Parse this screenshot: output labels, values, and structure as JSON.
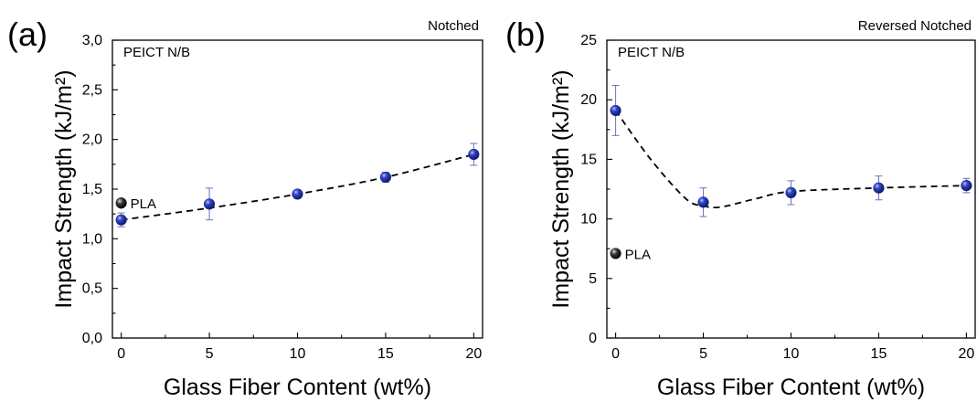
{
  "chart_data": [
    {
      "type": "scatter",
      "panel_label": "(a)",
      "title": "Notched",
      "inner_label": "PEICT N/B",
      "xlabel": "Glass Fiber Content (wt%)",
      "ylabel": "Impact Strength (kJ/m²)",
      "xlim": [
        -0.5,
        20.5
      ],
      "ylim": [
        0,
        3.0
      ],
      "xticks": [
        0,
        5,
        10,
        15,
        20
      ],
      "yticks": [
        "0,0",
        "0,5",
        "1,0",
        "1,5",
        "2,0",
        "2,5",
        "3,0"
      ],
      "series": [
        {
          "x": [
            0,
            5,
            10,
            15,
            20
          ],
          "y": [
            1.19,
            1.35,
            1.45,
            1.62,
            1.85
          ],
          "err": [
            0.07,
            0.16,
            0.03,
            0.05,
            0.11
          ]
        }
      ],
      "fit_curve": {
        "x": [
          0,
          5,
          10,
          15,
          20
        ],
        "y": [
          1.19,
          1.31,
          1.45,
          1.62,
          1.85
        ]
      },
      "reference": {
        "name": "PLA",
        "x": 0,
        "y": 1.36,
        "err": 0.06
      },
      "marker_color": "#1d2f9e",
      "reference_color": "#222222"
    },
    {
      "type": "scatter",
      "panel_label": "(b)",
      "title": "Reversed Notched",
      "inner_label": "PEICT N/B",
      "xlabel": "Glass Fiber Content (wt%)",
      "ylabel": "Impact Strength (kJ/m²)",
      "xlim": [
        -0.5,
        20.5
      ],
      "ylim": [
        0,
        25
      ],
      "xticks": [
        0,
        5,
        10,
        15,
        20
      ],
      "yticks": [
        "0",
        "5",
        "10",
        "15",
        "20",
        "25"
      ],
      "series": [
        {
          "x": [
            0,
            5,
            10,
            15,
            20
          ],
          "y": [
            19.1,
            11.4,
            12.2,
            12.6,
            12.8
          ],
          "err": [
            2.1,
            1.2,
            1.0,
            1.0,
            0.6
          ]
        }
      ],
      "fit_curve": {
        "x": [
          0,
          2,
          4,
          5,
          6,
          8,
          10,
          15,
          20
        ],
        "y": [
          19.1,
          15.0,
          11.7,
          11.1,
          11.0,
          11.7,
          12.3,
          12.6,
          12.8
        ]
      },
      "reference": {
        "name": "PLA",
        "x": 0,
        "y": 7.1,
        "err": 0
      },
      "marker_color": "#1d2f9e",
      "reference_color": "#222222"
    }
  ]
}
